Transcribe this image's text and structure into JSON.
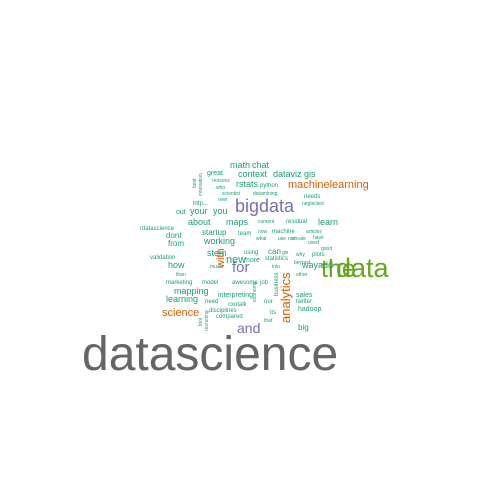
{
  "palette": {
    "gray": "#666666",
    "green": "#66a61e",
    "purple": "#7570b3",
    "orange": "#d95f02",
    "teal": "#1b9e77"
  },
  "words": [
    {
      "text": "datascience",
      "color": "gray"
    },
    {
      "text": "data",
      "color": "green"
    },
    {
      "text": "the",
      "color": "green"
    },
    {
      "text": "bigdata",
      "color": "purple"
    },
    {
      "text": "for",
      "color": "purple"
    },
    {
      "text": "and",
      "color": "purple"
    },
    {
      "text": "analytics",
      "color": "orange"
    },
    {
      "text": "machinelearning",
      "color": "orange"
    },
    {
      "text": "science",
      "color": "orange"
    },
    {
      "text": "with",
      "color": "orange"
    },
    {
      "text": "math",
      "color": "teal"
    },
    {
      "text": "chat",
      "color": "teal"
    },
    {
      "text": "context",
      "color": "teal"
    },
    {
      "text": "dataviz",
      "color": "teal"
    },
    {
      "text": "gis",
      "color": "teal"
    },
    {
      "text": "rstats",
      "color": "teal"
    },
    {
      "text": "python",
      "color": "teal"
    },
    {
      "text": "great",
      "color": "teal"
    },
    {
      "text": "reasons",
      "color": "teal"
    },
    {
      "text": "who",
      "color": "teal"
    },
    {
      "text": "scientist",
      "color": "teal"
    },
    {
      "text": "datamining",
      "color": "teal"
    },
    {
      "text": "over",
      "color": "teal"
    },
    {
      "text": "needs",
      "color": "teal"
    },
    {
      "text": "neglected",
      "color": "teal"
    },
    {
      "text": "http...",
      "color": "teal"
    },
    {
      "text": "out",
      "color": "teal"
    },
    {
      "text": "your",
      "color": "teal"
    },
    {
      "text": "you",
      "color": "teal"
    },
    {
      "text": "about",
      "color": "teal"
    },
    {
      "text": "maps",
      "color": "teal"
    },
    {
      "text": "content",
      "color": "teal"
    },
    {
      "text": "residual",
      "color": "teal"
    },
    {
      "text": "learn",
      "color": "teal"
    },
    {
      "text": "rdatascience",
      "color": "teal"
    },
    {
      "text": "startup",
      "color": "teal"
    },
    {
      "text": "team",
      "color": "teal"
    },
    {
      "text": "now",
      "color": "teal"
    },
    {
      "text": "machine",
      "color": "teal"
    },
    {
      "text": "articles",
      "color": "teal"
    },
    {
      "text": "dont",
      "color": "teal"
    },
    {
      "text": "working",
      "color": "teal"
    },
    {
      "text": "what",
      "color": "teal"
    },
    {
      "text": "use",
      "color": "teal"
    },
    {
      "text": "not",
      "color": "teal"
    },
    {
      "text": "have",
      "color": "teal"
    },
    {
      "text": "from",
      "color": "teal"
    },
    {
      "text": "stem",
      "color": "teal"
    },
    {
      "text": "can",
      "color": "teal"
    },
    {
      "text": "good",
      "color": "teal"
    },
    {
      "text": "validation",
      "color": "teal"
    },
    {
      "text": "how",
      "color": "teal"
    },
    {
      "text": "more",
      "color": "teal"
    },
    {
      "text": "statistics",
      "color": "teal"
    },
    {
      "text": "way",
      "color": "teal"
    },
    {
      "text": "add",
      "color": "teal"
    },
    {
      "text": "using",
      "color": "teal"
    },
    {
      "text": "gis",
      "color": "teal"
    },
    {
      "text": "why",
      "color": "teal"
    },
    {
      "text": "plots",
      "color": "teal"
    },
    {
      "text": "used",
      "color": "teal"
    },
    {
      "text": "than",
      "color": "teal"
    },
    {
      "text": "music",
      "color": "teal"
    },
    {
      "text": "into",
      "color": "teal"
    },
    {
      "text": "beyond",
      "color": "teal"
    },
    {
      "text": "marketing",
      "color": "teal"
    },
    {
      "text": "model",
      "color": "teal"
    },
    {
      "text": "awesome",
      "color": "teal"
    },
    {
      "text": "job",
      "color": "teal"
    },
    {
      "text": "other",
      "color": "teal"
    },
    {
      "text": "new",
      "color": "teal"
    },
    {
      "text": "mapping",
      "color": "teal"
    },
    {
      "text": "interpreting",
      "color": "teal"
    },
    {
      "text": "sales",
      "color": "teal"
    },
    {
      "text": "learning",
      "color": "teal"
    },
    {
      "text": "need",
      "color": "teal"
    },
    {
      "text": "cxotalk",
      "color": "teal"
    },
    {
      "text": "our",
      "color": "teal"
    },
    {
      "text": "twitter",
      "color": "teal"
    },
    {
      "text": "compared",
      "color": "teal"
    },
    {
      "text": "hadoop",
      "color": "teal"
    },
    {
      "text": "disciplines",
      "color": "teal"
    },
    {
      "text": "its",
      "color": "teal"
    },
    {
      "text": "that",
      "color": "teal"
    },
    {
      "text": "big",
      "color": "teal"
    },
    {
      "text": "business",
      "color": "teal"
    },
    {
      "text": "economy",
      "color": "teal"
    },
    {
      "text": "tool",
      "color": "teal"
    },
    {
      "text": "best",
      "color": "teal"
    },
    {
      "text": "innovation",
      "color": "teal"
    },
    {
      "text": "recruiting",
      "color": "teal"
    },
    {
      "text": "create",
      "color": "teal"
    }
  ]
}
